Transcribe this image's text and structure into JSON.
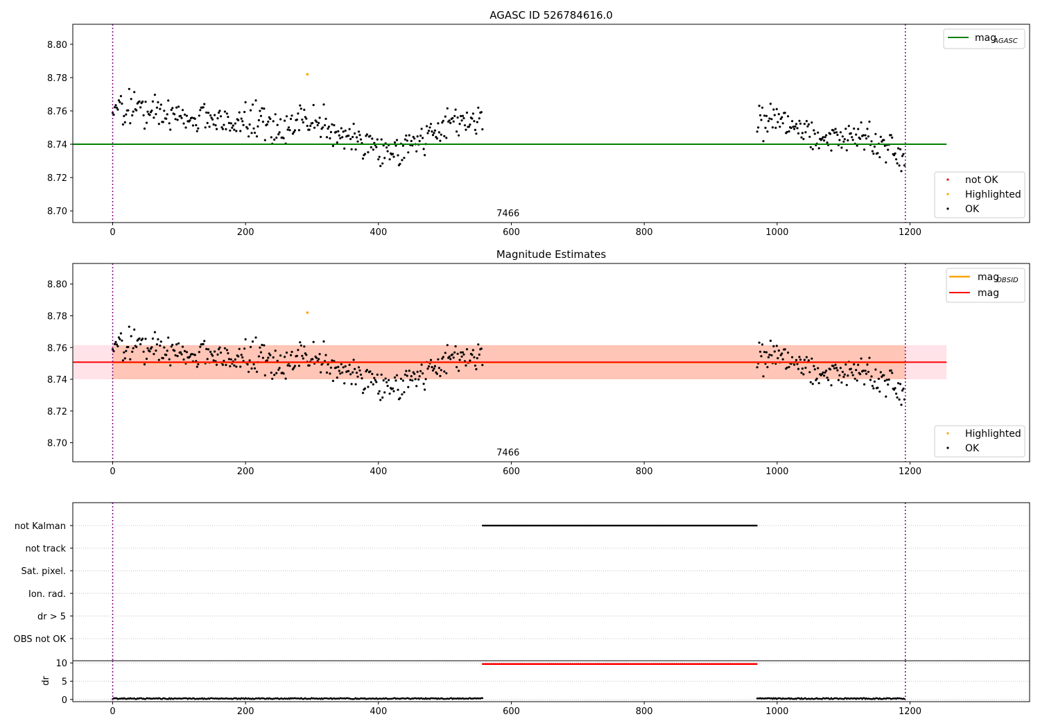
{
  "chart_data": [
    {
      "type": "scatter",
      "title": "AGASC ID 526784616.0",
      "xlabel": "",
      "ylabel": "",
      "xlim": [
        -60,
        1380
      ],
      "ylim": [
        8.693,
        8.812
      ],
      "x_ticks": [
        0,
        200,
        400,
        600,
        800,
        1000,
        1200
      ],
      "y_ticks": [
        8.7,
        8.72,
        8.74,
        8.76,
        8.78,
        8.8
      ],
      "y_tick_labels": [
        "8.70",
        "8.72",
        "8.74",
        "8.76",
        "8.78",
        "8.80"
      ],
      "obsid_label": "7466",
      "obsid_label_x": 595,
      "vlines": [
        0,
        1193
      ],
      "grid": false,
      "segments": [
        {
          "x_start": 0,
          "x_end": 557,
          "step": 1.55,
          "pattern": [
            [
              0,
              8.763
            ],
            [
              50,
              8.76
            ],
            [
              100,
              8.757
            ],
            [
              150,
              8.757
            ],
            [
              200,
              8.755
            ],
            [
              250,
              8.751
            ],
            [
              300,
              8.753
            ],
            [
              350,
              8.747
            ],
            [
              380,
              8.742
            ],
            [
              400,
              8.736
            ],
            [
              420,
              8.735
            ],
            [
              450,
              8.742
            ],
            [
              480,
              8.747
            ],
            [
              520,
              8.753
            ],
            [
              557,
              8.755
            ]
          ],
          "noise": 0.0085
        },
        {
          "x_start": 970,
          "x_end": 1193,
          "step": 1.55,
          "pattern": [
            [
              970,
              8.756
            ],
            [
              1000,
              8.754
            ],
            [
              1040,
              8.749
            ],
            [
              1070,
              8.743
            ],
            [
              1100,
              8.745
            ],
            [
              1140,
              8.743
            ],
            [
              1170,
              8.736
            ],
            [
              1193,
              8.733
            ]
          ],
          "noise": 0.0085
        }
      ],
      "highlighted_points": [
        {
          "x": 293,
          "y": 8.782
        }
      ],
      "reference_line": {
        "name": "mag_AGASC",
        "value": 8.74,
        "x_start": -60,
        "x_end": 1255,
        "color": "#008000"
      },
      "legend_top": [
        {
          "label": "mag",
          "sub": "AGASC",
          "color": "#008000",
          "marker": "line"
        }
      ],
      "legend_bottom": [
        {
          "label": "not OK",
          "color": "#ff0000",
          "marker": "dot"
        },
        {
          "label": "Highlighted",
          "color": "#ffa500",
          "marker": "dot"
        },
        {
          "label": "OK",
          "color": "#000000",
          "marker": "dot"
        }
      ]
    },
    {
      "type": "scatter",
      "title": "Magnitude Estimates",
      "xlabel": "",
      "ylabel": "",
      "xlim": [
        -60,
        1380
      ],
      "ylim": [
        8.688,
        8.813
      ],
      "x_ticks": [
        0,
        200,
        400,
        600,
        800,
        1000,
        1200
      ],
      "y_ticks": [
        8.7,
        8.72,
        8.74,
        8.76,
        8.78,
        8.8
      ],
      "y_tick_labels": [
        "8.70",
        "8.72",
        "8.74",
        "8.76",
        "8.78",
        "8.80"
      ],
      "obsid_label": "7466",
      "obsid_label_x": 595,
      "vlines": [
        0,
        1193
      ],
      "grid": false,
      "bands": [
        {
          "x_start": -60,
          "x_end": 1255,
          "y_low": 8.74,
          "y_high": 8.7615,
          "color": "#ffc0cb",
          "opacity": 0.45
        },
        {
          "x_start": 0,
          "x_end": 1193,
          "y_low": 8.74,
          "y_high": 8.7615,
          "color": "#ffa07a",
          "opacity": 0.45
        }
      ],
      "lines": [
        {
          "name": "mag_OBSID",
          "value": 8.7505,
          "x_start": 0,
          "x_end": 1193,
          "color": "#ffa500"
        },
        {
          "name": "mag",
          "value": 8.7508,
          "x_start": -60,
          "x_end": 1255,
          "color": "#ff0000"
        }
      ],
      "highlighted_points": [
        {
          "x": 293,
          "y": 8.782
        }
      ],
      "legend_top": [
        {
          "label": "mag",
          "sub": "OBSID",
          "color": "#ffa500",
          "marker": "line"
        },
        {
          "label": "mag",
          "sub": "",
          "color": "#ff0000",
          "marker": "line"
        }
      ],
      "legend_bottom": [
        {
          "label": "Highlighted",
          "color": "#ffa500",
          "marker": "dot"
        },
        {
          "label": "OK",
          "color": "#000000",
          "marker": "dot"
        }
      ]
    },
    {
      "type": "scatter",
      "title": "",
      "xlabel": "",
      "ylabel": "",
      "xlim": [
        -60,
        1380
      ],
      "x_ticks": [
        0,
        200,
        400,
        600,
        800,
        1000,
        1200
      ],
      "vlines": [
        0,
        1193
      ],
      "flag_rows": [
        "not Kalman",
        "not track",
        "Sat. pixel.",
        "Ion. rad.",
        "dr > 5",
        "OBS not OK"
      ],
      "flag_spans": [
        {
          "row": "not Kalman",
          "x_start": 557,
          "x_end": 970,
          "color": "#000000"
        }
      ],
      "grid": true
    },
    {
      "type": "line",
      "title": "",
      "xlabel": "",
      "ylabel": "dr",
      "xlim": [
        -60,
        1380
      ],
      "ylim": [
        -0.6,
        10.6
      ],
      "x_ticks": [
        0,
        200,
        400,
        600,
        800,
        1000,
        1200
      ],
      "y_ticks": [
        0,
        5,
        10
      ],
      "y_tick_labels": [
        "0",
        "5",
        "10"
      ],
      "vlines": [
        0,
        1193
      ],
      "segments": [
        {
          "x_start": 0,
          "x_end": 557,
          "value": 0.25,
          "color": "#000000"
        },
        {
          "x_start": 970,
          "x_end": 1193,
          "value": 0.25,
          "color": "#000000"
        }
      ],
      "clipped": [
        {
          "x_start": 557,
          "x_end": 970,
          "value": 10,
          "color": "#ff0000"
        }
      ],
      "grid": true
    }
  ]
}
